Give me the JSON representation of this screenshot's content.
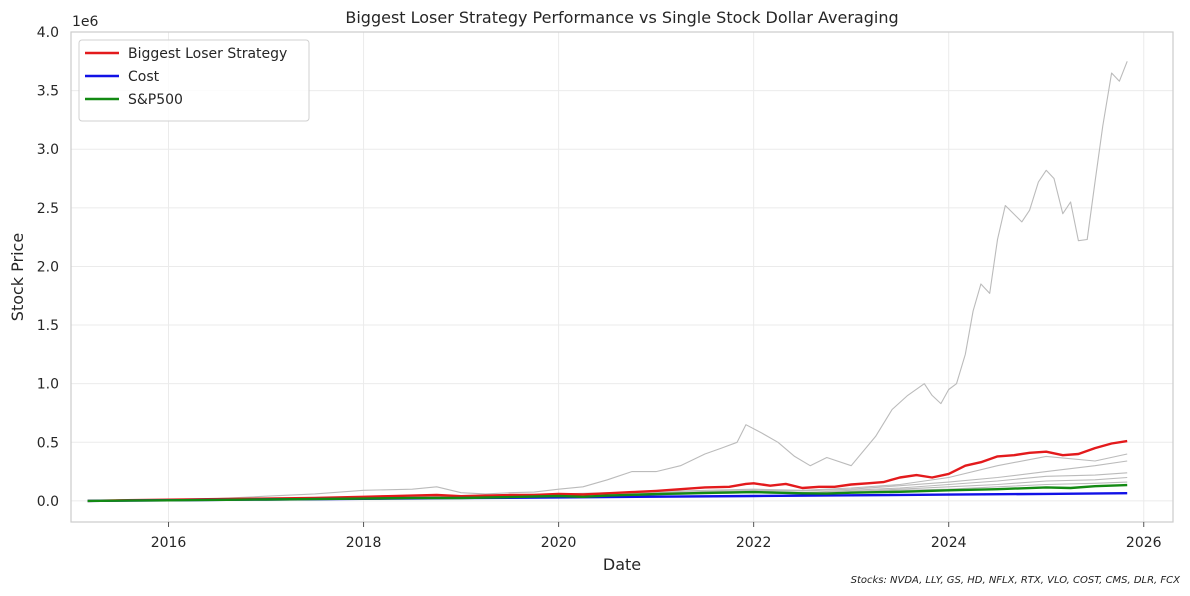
{
  "chart_data": {
    "type": "line",
    "title": "Biggest Loser Strategy Performance vs Single Stock Dollar Averaging",
    "xlabel": "Date",
    "ylabel": "Stock Price",
    "y_offset_label": "1e6",
    "xlim": [
      2015.0,
      2026.3
    ],
    "ylim": [
      -0.18,
      4.0
    ],
    "x_ticks": [
      2016,
      2018,
      2020,
      2022,
      2024,
      2026
    ],
    "y_ticks": [
      0.0,
      0.5,
      1.0,
      1.5,
      2.0,
      2.5,
      3.0,
      3.5,
      4.0
    ],
    "y_tick_labels": [
      "0.0",
      "0.5",
      "1.0",
      "1.5",
      "2.0",
      "2.5",
      "3.0",
      "3.5",
      "4.0"
    ],
    "grid": true,
    "legend_position": "top-left",
    "footnote": "Stocks: NVDA, LLY, GS, HD, NFLX, RTX, VLO, COST, CMS, DLR, FCX",
    "series": [
      {
        "name": "Biggest Loser Strategy",
        "color": "#e31a1c",
        "legend": true,
        "x": [
          2015.17,
          2015.5,
          2016.0,
          2016.5,
          2017.0,
          2017.5,
          2018.0,
          2018.25,
          2018.5,
          2018.75,
          2019.0,
          2019.25,
          2019.5,
          2019.75,
          2020.0,
          2020.25,
          2020.5,
          2020.75,
          2021.0,
          2021.25,
          2021.5,
          2021.75,
          2021.92,
          2022.0,
          2022.17,
          2022.33,
          2022.5,
          2022.67,
          2022.83,
          2023.0,
          2023.17,
          2023.33,
          2023.5,
          2023.67,
          2023.83,
          2024.0,
          2024.17,
          2024.33,
          2024.5,
          2024.67,
          2024.83,
          2025.0,
          2025.17,
          2025.33,
          2025.5,
          2025.67,
          2025.83
        ],
        "values": [
          0.0,
          0.005,
          0.01,
          0.015,
          0.02,
          0.025,
          0.035,
          0.04,
          0.045,
          0.05,
          0.04,
          0.045,
          0.05,
          0.05,
          0.06,
          0.055,
          0.065,
          0.075,
          0.085,
          0.1,
          0.115,
          0.12,
          0.145,
          0.15,
          0.13,
          0.145,
          0.11,
          0.12,
          0.12,
          0.14,
          0.15,
          0.16,
          0.2,
          0.22,
          0.2,
          0.23,
          0.3,
          0.33,
          0.38,
          0.39,
          0.41,
          0.42,
          0.39,
          0.4,
          0.45,
          0.49,
          0.51
        ]
      },
      {
        "name": "Cost",
        "color": "#1111e6",
        "legend": true,
        "x": [
          2015.17,
          2016.0,
          2017.0,
          2018.0,
          2019.0,
          2020.0,
          2021.0,
          2022.0,
          2023.0,
          2024.0,
          2025.0,
          2025.83
        ],
        "values": [
          0.0,
          0.005,
          0.012,
          0.018,
          0.024,
          0.03,
          0.036,
          0.042,
          0.048,
          0.054,
          0.06,
          0.066
        ]
      },
      {
        "name": "S&P500",
        "color": "#138a13",
        "legend": true,
        "x": [
          2015.17,
          2016.0,
          2017.0,
          2018.0,
          2018.5,
          2019.0,
          2019.5,
          2020.0,
          2020.25,
          2020.5,
          2021.0,
          2021.5,
          2022.0,
          2022.5,
          2022.75,
          2023.0,
          2023.5,
          2024.0,
          2024.5,
          2025.0,
          2025.25,
          2025.5,
          2025.83
        ],
        "values": [
          0.0,
          0.005,
          0.012,
          0.02,
          0.025,
          0.025,
          0.032,
          0.042,
          0.035,
          0.045,
          0.058,
          0.068,
          0.075,
          0.065,
          0.062,
          0.07,
          0.078,
          0.09,
          0.1,
          0.115,
          0.11,
          0.125,
          0.135
        ]
      },
      {
        "name": "",
        "color": "#bbbbbb",
        "legend": false,
        "x": [
          2015.17,
          2015.5,
          2016.0,
          2016.5,
          2017.0,
          2017.5,
          2018.0,
          2018.5,
          2018.75,
          2019.0,
          2019.25,
          2019.5,
          2019.75,
          2020.0,
          2020.25,
          2020.5,
          2020.75,
          2021.0,
          2021.25,
          2021.5,
          2021.67,
          2021.83,
          2021.92,
          2022.08,
          2022.25,
          2022.42,
          2022.58,
          2022.75,
          2023.0,
          2023.25,
          2023.42,
          2023.58,
          2023.75,
          2023.83,
          2023.92,
          2024.0,
          2024.08,
          2024.17,
          2024.25,
          2024.33,
          2024.42,
          2024.5,
          2024.58,
          2024.75,
          2024.83,
          2024.92,
          2025.0,
          2025.08,
          2025.17,
          2025.25,
          2025.33,
          2025.42,
          2025.5,
          2025.58,
          2025.67,
          2025.75,
          2025.83
        ],
        "values": [
          0.0,
          0.005,
          0.01,
          0.02,
          0.04,
          0.06,
          0.09,
          0.1,
          0.12,
          0.07,
          0.06,
          0.07,
          0.075,
          0.1,
          0.12,
          0.18,
          0.25,
          0.25,
          0.3,
          0.4,
          0.45,
          0.5,
          0.65,
          0.58,
          0.5,
          0.38,
          0.3,
          0.37,
          0.3,
          0.55,
          0.78,
          0.9,
          1.0,
          0.9,
          0.83,
          0.95,
          1.0,
          1.25,
          1.62,
          1.85,
          1.77,
          2.23,
          2.52,
          2.38,
          2.48,
          2.72,
          2.82,
          2.75,
          2.45,
          2.55,
          2.22,
          2.23,
          2.72,
          3.2,
          3.65,
          3.58,
          3.75
        ]
      },
      {
        "name": "",
        "color": "#bbbbbb",
        "legend": false,
        "x": [
          2015.17,
          2016.0,
          2017.0,
          2018.0,
          2019.0,
          2020.0,
          2021.0,
          2022.0,
          2022.5,
          2023.0,
          2023.5,
          2024.0,
          2024.5,
          2025.0,
          2025.5,
          2025.83
        ],
        "values": [
          0.0,
          0.008,
          0.02,
          0.035,
          0.045,
          0.06,
          0.08,
          0.1,
          0.09,
          0.11,
          0.14,
          0.2,
          0.3,
          0.38,
          0.34,
          0.4
        ]
      },
      {
        "name": "",
        "color": "#bbbbbb",
        "legend": false,
        "x": [
          2015.17,
          2016.0,
          2017.0,
          2018.0,
          2019.0,
          2020.0,
          2021.0,
          2022.0,
          2022.5,
          2023.0,
          2023.5,
          2024.0,
          2024.5,
          2025.0,
          2025.5,
          2025.83
        ],
        "values": [
          0.0,
          0.007,
          0.015,
          0.025,
          0.035,
          0.05,
          0.07,
          0.09,
          0.085,
          0.1,
          0.13,
          0.16,
          0.2,
          0.25,
          0.3,
          0.34
        ]
      },
      {
        "name": "",
        "color": "#bbbbbb",
        "legend": false,
        "x": [
          2015.17,
          2016.0,
          2017.0,
          2018.0,
          2019.0,
          2020.0,
          2021.0,
          2022.0,
          2022.5,
          2023.0,
          2023.5,
          2024.0,
          2024.5,
          2025.0,
          2025.5,
          2025.83
        ],
        "values": [
          0.0,
          0.006,
          0.014,
          0.022,
          0.03,
          0.045,
          0.065,
          0.085,
          0.07,
          0.09,
          0.11,
          0.14,
          0.17,
          0.21,
          0.22,
          0.24
        ]
      },
      {
        "name": "",
        "color": "#bbbbbb",
        "legend": false,
        "x": [
          2015.17,
          2016.0,
          2017.0,
          2018.0,
          2019.0,
          2020.0,
          2021.0,
          2022.0,
          2022.5,
          2023.0,
          2023.5,
          2024.0,
          2024.5,
          2025.0,
          2025.5,
          2025.83
        ],
        "values": [
          0.0,
          0.006,
          0.012,
          0.02,
          0.028,
          0.04,
          0.055,
          0.075,
          0.065,
          0.08,
          0.1,
          0.12,
          0.14,
          0.17,
          0.18,
          0.2
        ]
      },
      {
        "name": "",
        "color": "#bbbbbb",
        "legend": false,
        "x": [
          2015.17,
          2016.0,
          2017.0,
          2018.0,
          2019.0,
          2020.0,
          2021.0,
          2022.0,
          2022.5,
          2023.0,
          2023.5,
          2024.0,
          2024.5,
          2025.0,
          2025.5,
          2025.83
        ],
        "values": [
          0.0,
          0.005,
          0.011,
          0.018,
          0.025,
          0.035,
          0.05,
          0.07,
          0.06,
          0.075,
          0.09,
          0.1,
          0.12,
          0.14,
          0.15,
          0.16
        ]
      }
    ]
  }
}
